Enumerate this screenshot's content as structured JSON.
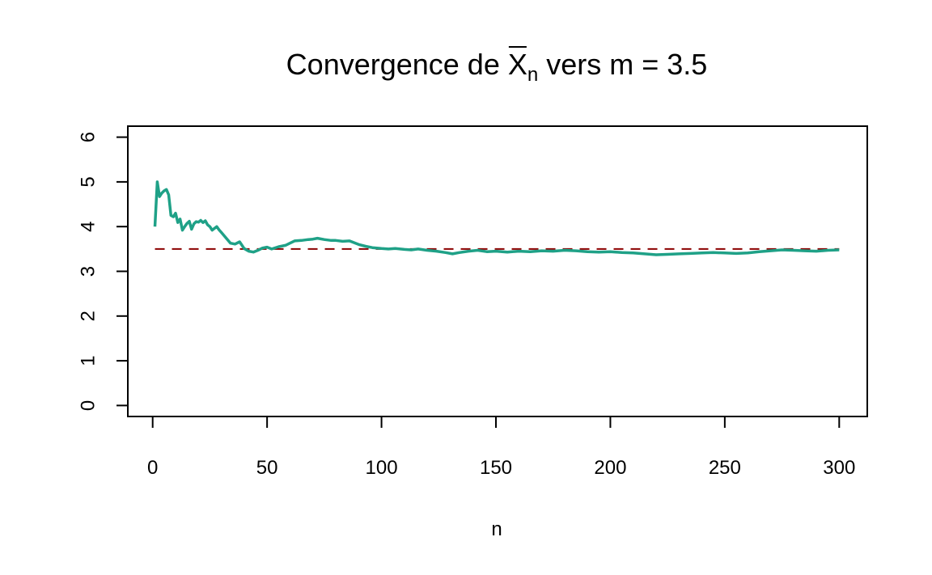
{
  "chart_data": {
    "type": "line",
    "title": {
      "prefix": "Convergence de ",
      "symbol": "X",
      "subscript": "n",
      "suffix": " vers m = 3.5"
    },
    "xlabel": "n",
    "ylabel": "",
    "xlim": [
      1,
      300
    ],
    "ylim": [
      0,
      6
    ],
    "x_ticks": [
      "0",
      "50",
      "100",
      "150",
      "200",
      "250",
      "300"
    ],
    "y_ticks": [
      "0",
      "1",
      "2",
      "3",
      "4",
      "5",
      "6"
    ],
    "grid": false,
    "legend": "none",
    "reference_line": {
      "y": 3.5,
      "style": "dashed",
      "color": "#8B0000"
    },
    "series": [
      {
        "color": "#1FA187",
        "points": [
          [
            1,
            4.0
          ],
          [
            2,
            5.0
          ],
          [
            3,
            4.67
          ],
          [
            4,
            4.75
          ],
          [
            5,
            4.8
          ],
          [
            6,
            4.83
          ],
          [
            7,
            4.71
          ],
          [
            8,
            4.25
          ],
          [
            9,
            4.22
          ],
          [
            10,
            4.3
          ],
          [
            11,
            4.09
          ],
          [
            12,
            4.17
          ],
          [
            13,
            3.92
          ],
          [
            14,
            4.0
          ],
          [
            15,
            4.07
          ],
          [
            16,
            4.12
          ],
          [
            17,
            3.94
          ],
          [
            18,
            4.06
          ],
          [
            19,
            4.11
          ],
          [
            20,
            4.1
          ],
          [
            21,
            4.14
          ],
          [
            22,
            4.09
          ],
          [
            23,
            4.13
          ],
          [
            24,
            4.04
          ],
          [
            25,
            4.0
          ],
          [
            26,
            3.92
          ],
          [
            27,
            3.96
          ],
          [
            28,
            4.0
          ],
          [
            29,
            3.93
          ],
          [
            30,
            3.87
          ],
          [
            32,
            3.75
          ],
          [
            34,
            3.63
          ],
          [
            36,
            3.61
          ],
          [
            38,
            3.66
          ],
          [
            40,
            3.51
          ],
          [
            42,
            3.45
          ],
          [
            44,
            3.43
          ],
          [
            46,
            3.47
          ],
          [
            48,
            3.52
          ],
          [
            50,
            3.54
          ],
          [
            52,
            3.5
          ],
          [
            55,
            3.55
          ],
          [
            58,
            3.58
          ],
          [
            60,
            3.63
          ],
          [
            62,
            3.68
          ],
          [
            65,
            3.69
          ],
          [
            68,
            3.71
          ],
          [
            70,
            3.72
          ],
          [
            72,
            3.74
          ],
          [
            75,
            3.71
          ],
          [
            78,
            3.69
          ],
          [
            80,
            3.69
          ],
          [
            83,
            3.67
          ],
          [
            86,
            3.68
          ],
          [
            90,
            3.6
          ],
          [
            93,
            3.56
          ],
          [
            96,
            3.53
          ],
          [
            100,
            3.51
          ],
          [
            103,
            3.5
          ],
          [
            106,
            3.51
          ],
          [
            110,
            3.49
          ],
          [
            113,
            3.48
          ],
          [
            116,
            3.5
          ],
          [
            120,
            3.47
          ],
          [
            124,
            3.45
          ],
          [
            128,
            3.42
          ],
          [
            131,
            3.39
          ],
          [
            134,
            3.42
          ],
          [
            138,
            3.45
          ],
          [
            142,
            3.47
          ],
          [
            146,
            3.44
          ],
          [
            150,
            3.45
          ],
          [
            155,
            3.43
          ],
          [
            160,
            3.45
          ],
          [
            165,
            3.44
          ],
          [
            170,
            3.46
          ],
          [
            175,
            3.45
          ],
          [
            180,
            3.47
          ],
          [
            185,
            3.46
          ],
          [
            190,
            3.44
          ],
          [
            195,
            3.43
          ],
          [
            200,
            3.44
          ],
          [
            205,
            3.42
          ],
          [
            210,
            3.41
          ],
          [
            215,
            3.39
          ],
          [
            220,
            3.37
          ],
          [
            225,
            3.38
          ],
          [
            230,
            3.39
          ],
          [
            235,
            3.4
          ],
          [
            240,
            3.41
          ],
          [
            245,
            3.42
          ],
          [
            250,
            3.41
          ],
          [
            255,
            3.4
          ],
          [
            260,
            3.41
          ],
          [
            265,
            3.44
          ],
          [
            270,
            3.46
          ],
          [
            275,
            3.48
          ],
          [
            280,
            3.47
          ],
          [
            285,
            3.46
          ],
          [
            290,
            3.45
          ],
          [
            295,
            3.47
          ],
          [
            300,
            3.48
          ]
        ]
      }
    ]
  }
}
